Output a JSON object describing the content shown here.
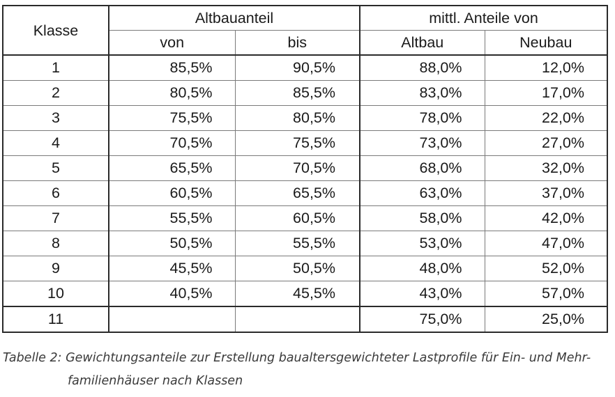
{
  "header": {
    "klasse": "Klasse",
    "altbauanteil": "Altbauanteil",
    "von": "von",
    "bis": "bis",
    "mittl_anteile": "mittl. Anteile von",
    "altbau": "Altbau",
    "neubau": "Neubau"
  },
  "rows": [
    {
      "klasse": "1",
      "von": "85,5%",
      "bis": "90,5%",
      "altbau": "88,0%",
      "neubau": "12,0%"
    },
    {
      "klasse": "2",
      "von": "80,5%",
      "bis": "85,5%",
      "altbau": "83,0%",
      "neubau": "17,0%"
    },
    {
      "klasse": "3",
      "von": "75,5%",
      "bis": "80,5%",
      "altbau": "78,0%",
      "neubau": "22,0%"
    },
    {
      "klasse": "4",
      "von": "70,5%",
      "bis": "75,5%",
      "altbau": "73,0%",
      "neubau": "27,0%"
    },
    {
      "klasse": "5",
      "von": "65,5%",
      "bis": "70,5%",
      "altbau": "68,0%",
      "neubau": "32,0%"
    },
    {
      "klasse": "6",
      "von": "60,5%",
      "bis": "65,5%",
      "altbau": "63,0%",
      "neubau": "37,0%"
    },
    {
      "klasse": "7",
      "von": "55,5%",
      "bis": "60,5%",
      "altbau": "58,0%",
      "neubau": "42,0%"
    },
    {
      "klasse": "8",
      "von": "50,5%",
      "bis": "55,5%",
      "altbau": "53,0%",
      "neubau": "47,0%"
    },
    {
      "klasse": "9",
      "von": "45,5%",
      "bis": "50,5%",
      "altbau": "48,0%",
      "neubau": "52,0%"
    },
    {
      "klasse": "10",
      "von": "40,5%",
      "bis": "45,5%",
      "altbau": "43,0%",
      "neubau": "57,0%"
    }
  ],
  "last_row": {
    "klasse": "11",
    "von": "",
    "bis": "",
    "altbau": "75,0%",
    "neubau": "25,0%"
  },
  "caption": {
    "line1": "Tabelle 2: Gewichtungsanteile zur Erstellung bau­altersgewichteter Lastprofile für Ein- und Mehr-",
    "line2": "familienhäuser nach Klassen"
  }
}
